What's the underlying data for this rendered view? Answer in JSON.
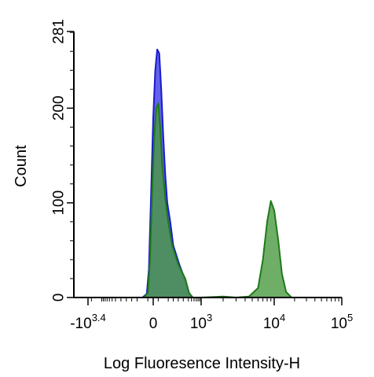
{
  "chart_data": {
    "type": "area",
    "title": "",
    "xlabel": "Log Fluoresence Intensity-H",
    "ylabel": "Count",
    "x_scale": "biexponential",
    "x_ticks": [
      {
        "value": -2512,
        "base": "-10",
        "exp": "3.4"
      },
      {
        "value": 0,
        "base": "0",
        "exp": ""
      },
      {
        "value": 1000,
        "base": "10",
        "exp": "3"
      },
      {
        "value": 10000,
        "base": "10",
        "exp": "4"
      },
      {
        "value": 100000,
        "base": "10",
        "exp": "5"
      }
    ],
    "ylim": [
      0,
      281
    ],
    "y_ticks": [
      0,
      100,
      200,
      281
    ],
    "grid": false,
    "legend": "none",
    "series": [
      {
        "color_fill": "#4646e6",
        "color_line": "#1a1acc",
        "opacity": 0.85,
        "points": [
          [
            -100,
            0
          ],
          [
            -60,
            4
          ],
          [
            -40,
            30
          ],
          [
            -20,
            110
          ],
          [
            0,
            190
          ],
          [
            20,
            240
          ],
          [
            40,
            262
          ],
          [
            60,
            258
          ],
          [
            80,
            220
          ],
          [
            100,
            170
          ],
          [
            120,
            130
          ],
          [
            140,
            100
          ],
          [
            170,
            80
          ],
          [
            200,
            55
          ],
          [
            260,
            35
          ],
          [
            320,
            18
          ],
          [
            400,
            6
          ],
          [
            500,
            0
          ]
        ]
      },
      {
        "color_fill": "#4a9a40",
        "color_line": "#1f7a1a",
        "opacity": 0.8,
        "points": [
          [
            -90,
            0
          ],
          [
            -50,
            5
          ],
          [
            -30,
            40
          ],
          [
            -10,
            110
          ],
          [
            10,
            170
          ],
          [
            30,
            200
          ],
          [
            50,
            205
          ],
          [
            70,
            180
          ],
          [
            90,
            140
          ],
          [
            120,
            105
          ],
          [
            150,
            80
          ],
          [
            190,
            55
          ],
          [
            250,
            35
          ],
          [
            320,
            20
          ],
          [
            420,
            5
          ],
          [
            550,
            0
          ],
          [
            1000,
            0
          ],
          [
            2000,
            1
          ],
          [
            3000,
            0
          ],
          [
            4500,
            1
          ],
          [
            6000,
            10
          ],
          [
            7000,
            40
          ],
          [
            8000,
            80
          ],
          [
            9000,
            102
          ],
          [
            10000,
            92
          ],
          [
            11500,
            60
          ],
          [
            13000,
            25
          ],
          [
            15000,
            6
          ],
          [
            18000,
            0
          ]
        ]
      }
    ]
  }
}
